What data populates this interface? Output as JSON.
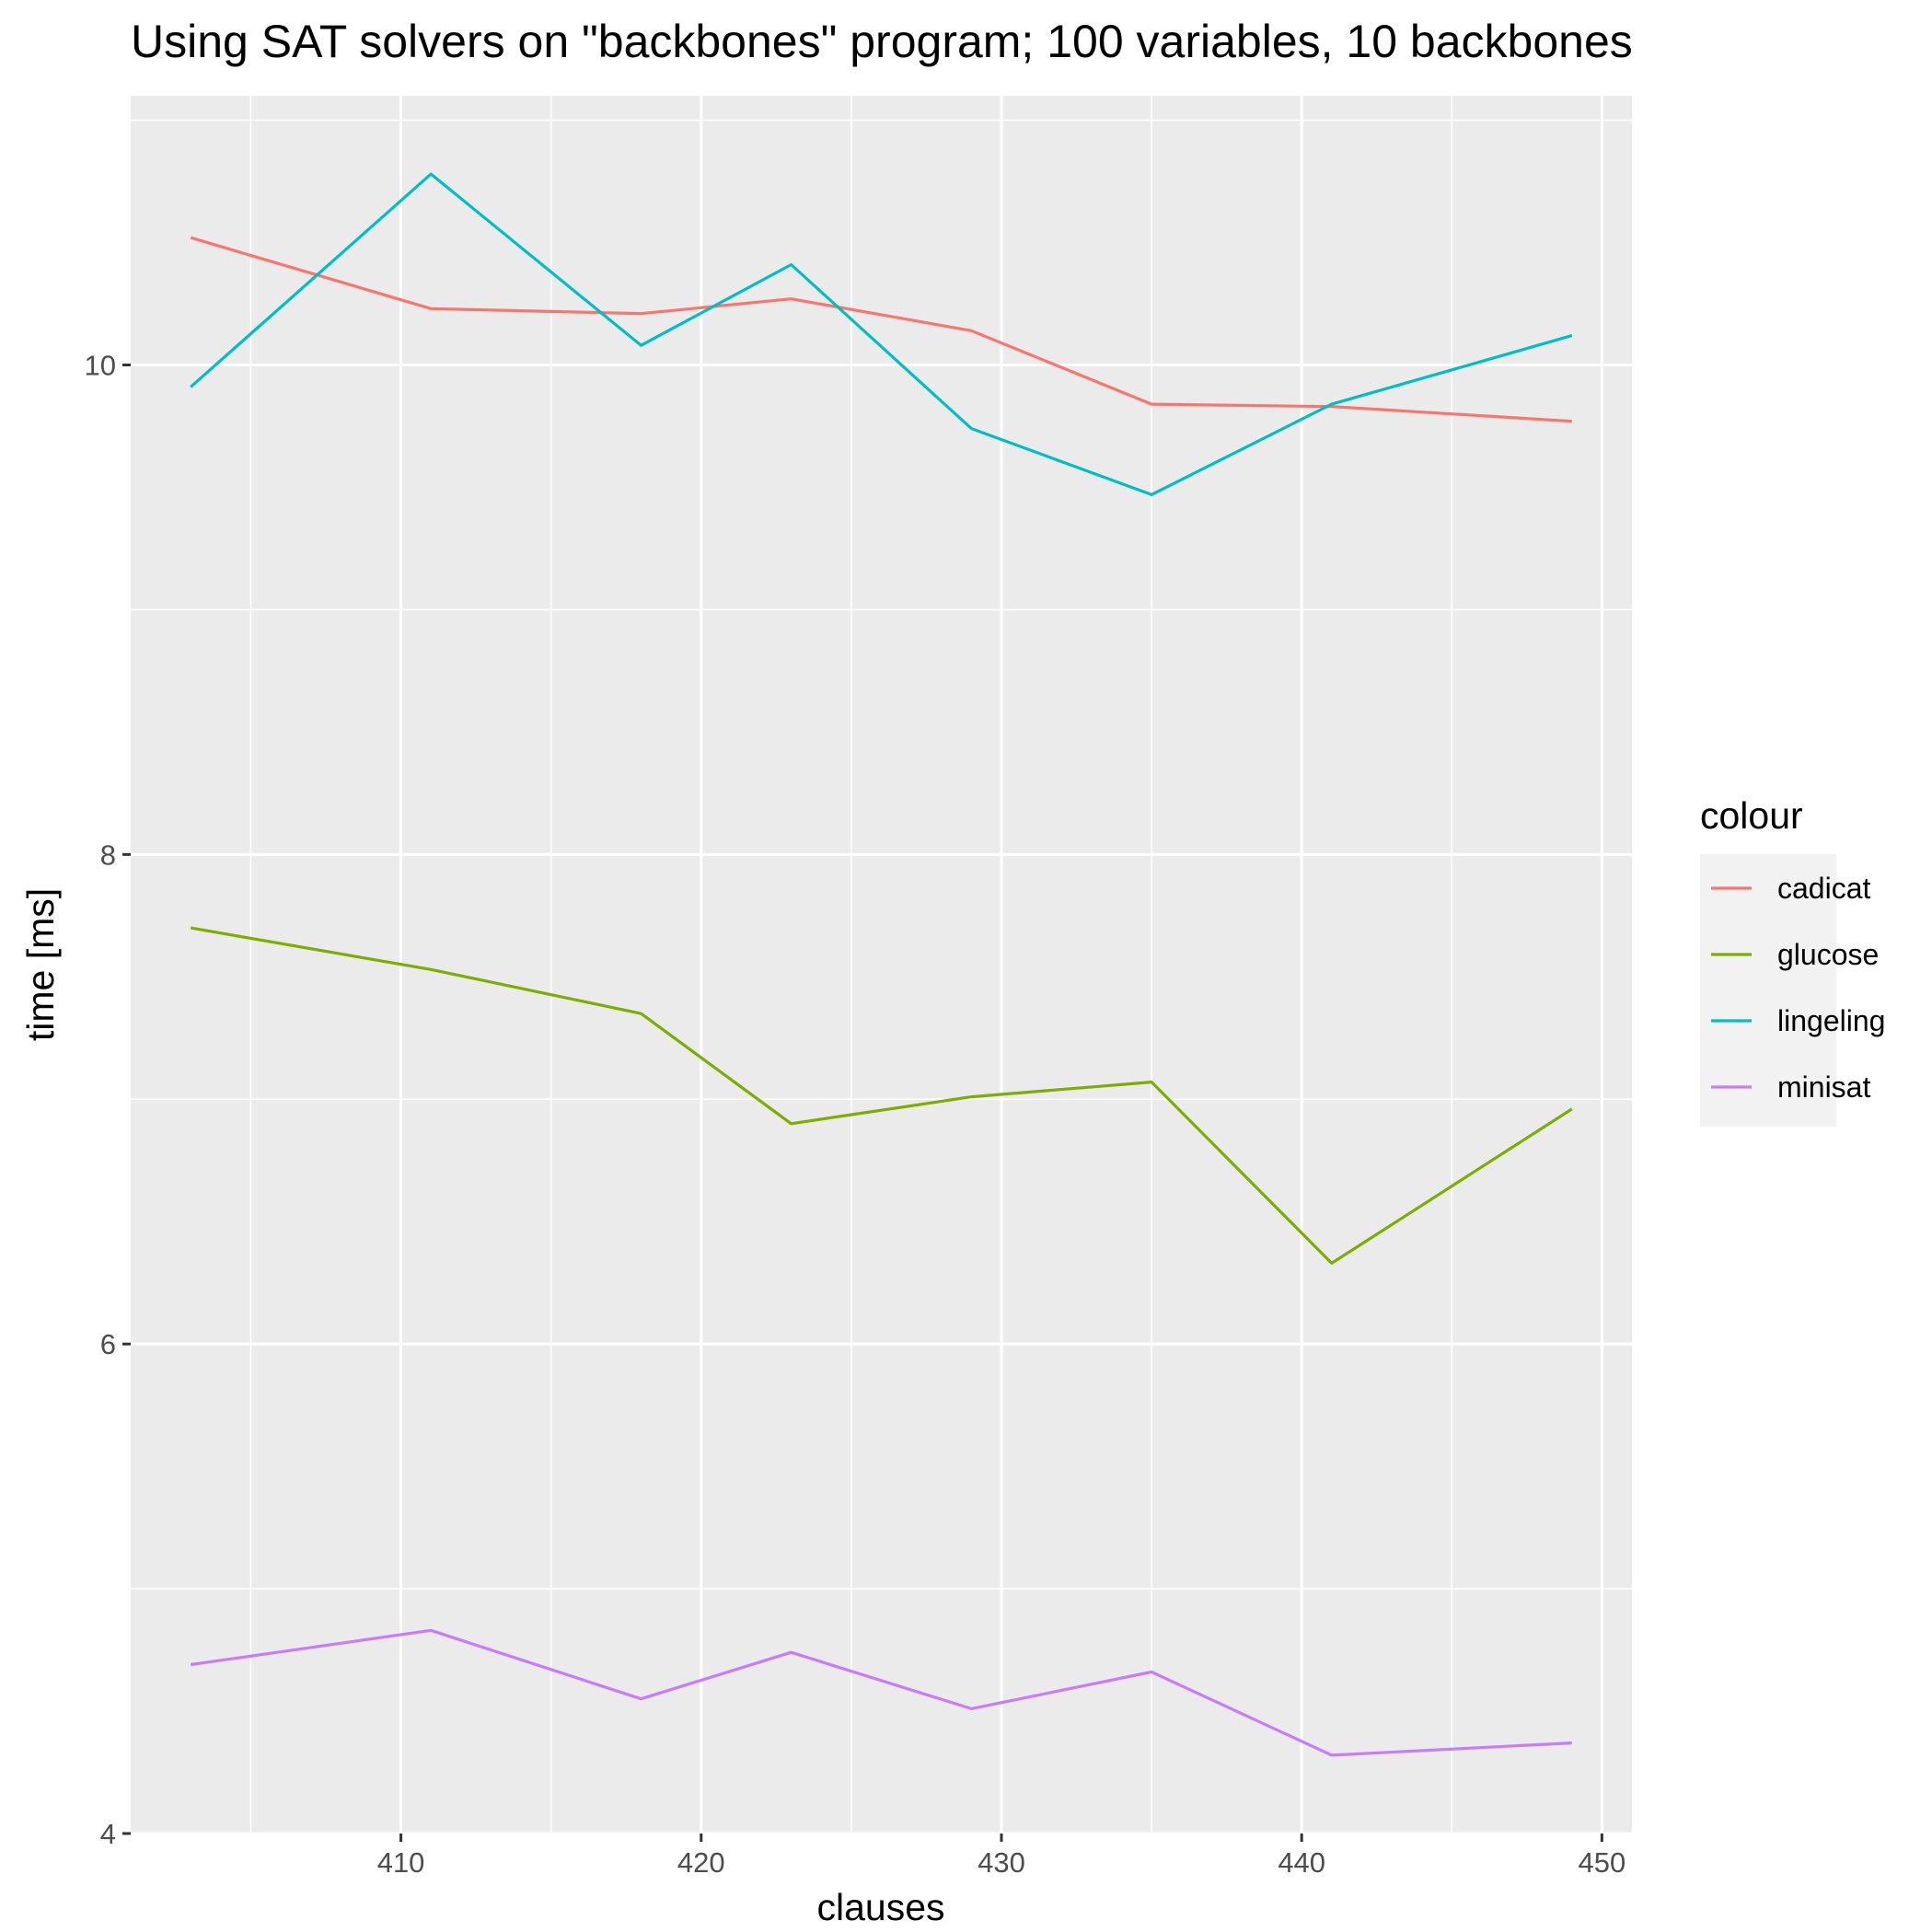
{
  "chart_data": {
    "type": "line",
    "title": "Using SAT solvers on \"backbones\" program; 100 variables, 10 backbones",
    "xlabel": "clauses",
    "ylabel": "time [ms]",
    "xlim": [
      401,
      451
    ],
    "ylim": [
      4,
      11.1
    ],
    "x_ticks": [
      410,
      420,
      430,
      440,
      450
    ],
    "x_tick_labels": [
      "410",
      "420",
      "430",
      "440",
      "450"
    ],
    "y_ticks": [
      4,
      6,
      8,
      10
    ],
    "y_tick_labels": [
      "4",
      "6",
      "8",
      "10"
    ],
    "grid": true,
    "legend": {
      "title": "colour",
      "position": "right"
    },
    "x": [
      403,
      411,
      418,
      423,
      429,
      435,
      441,
      449
    ],
    "series": [
      {
        "name": "cadicat",
        "color": "#F8766D",
        "values": [
          10.52,
          10.23,
          10.21,
          10.27,
          10.14,
          9.84,
          9.83,
          9.77
        ]
      },
      {
        "name": "glucose",
        "color": "#7CAE00",
        "values": [
          7.7,
          7.53,
          7.35,
          6.9,
          7.01,
          7.07,
          6.33,
          6.96
        ]
      },
      {
        "name": "lingeling",
        "color": "#00BFC4",
        "values": [
          9.91,
          10.78,
          10.08,
          10.41,
          9.74,
          9.47,
          9.84,
          10.12
        ]
      },
      {
        "name": "minisat",
        "color": "#C77CFF",
        "values": [
          4.69,
          4.83,
          4.55,
          4.74,
          4.51,
          4.66,
          4.32,
          4.37
        ]
      }
    ]
  }
}
